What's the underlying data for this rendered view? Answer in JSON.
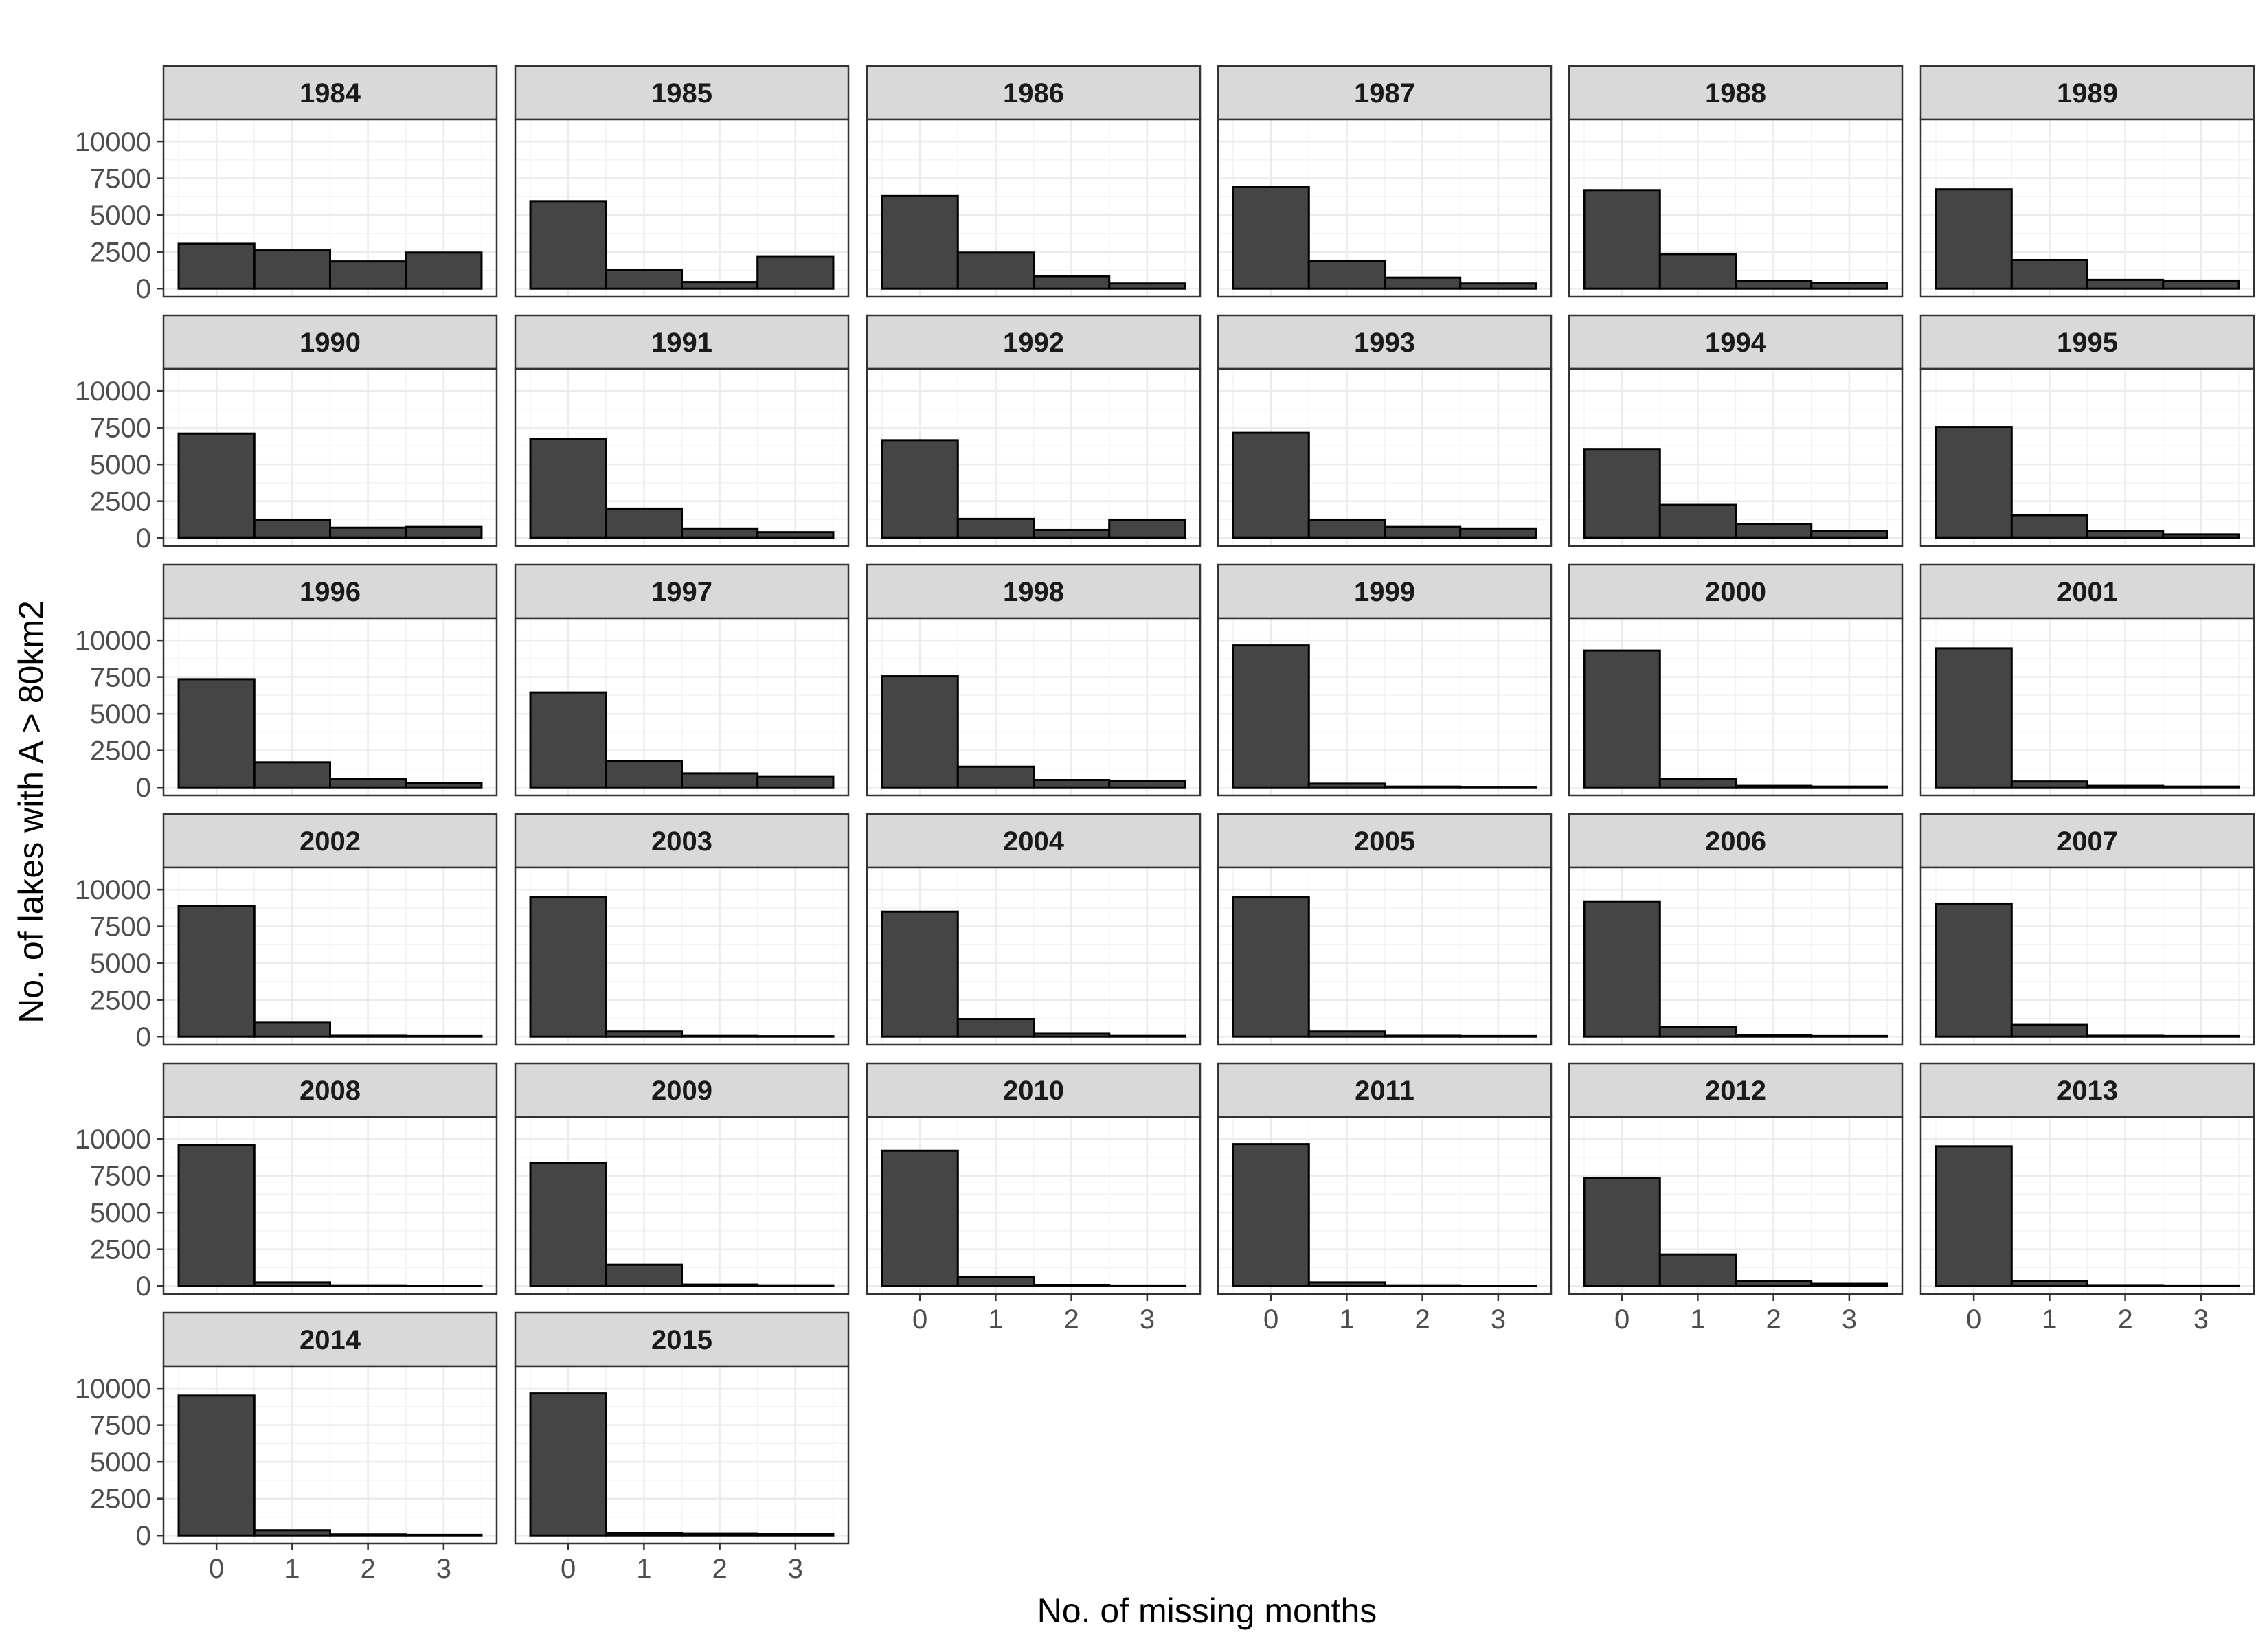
{
  "chart_data": {
    "type": "bar",
    "xlabel": "No. of missing months",
    "ylabel": "No. of lakes with A > 80km2",
    "x_categories": [
      "0",
      "1",
      "2",
      "3"
    ],
    "y_ticks": [
      "0",
      "2500",
      "5000",
      "7500",
      "10000"
    ],
    "y_tick_values": [
      0,
      2500,
      5000,
      7500,
      10000
    ],
    "ylim": [
      -550,
      11500
    ],
    "grid": true,
    "colors": {
      "bar_fill": "#454545",
      "bar_stroke": "#000000",
      "strip_fill": "#d9d9d9",
      "grid": "#ebebeb"
    },
    "facets": [
      {
        "year": "1984",
        "values": [
          3050,
          2600,
          1850,
          2450
        ]
      },
      {
        "year": "1985",
        "values": [
          5950,
          1250,
          450,
          2200
        ]
      },
      {
        "year": "1986",
        "values": [
          6300,
          2450,
          850,
          350
        ]
      },
      {
        "year": "1987",
        "values": [
          6900,
          1900,
          750,
          350
        ]
      },
      {
        "year": "1988",
        "values": [
          6700,
          2350,
          500,
          400
        ]
      },
      {
        "year": "1989",
        "values": [
          6750,
          1950,
          600,
          550
        ]
      },
      {
        "year": "1990",
        "values": [
          7100,
          1250,
          700,
          750
        ]
      },
      {
        "year": "1991",
        "values": [
          6750,
          2000,
          650,
          400
        ]
      },
      {
        "year": "1992",
        "values": [
          6650,
          1300,
          550,
          1250
        ]
      },
      {
        "year": "1993",
        "values": [
          7150,
          1250,
          750,
          650
        ]
      },
      {
        "year": "1994",
        "values": [
          6050,
          2250,
          950,
          500
        ]
      },
      {
        "year": "1995",
        "values": [
          7550,
          1550,
          500,
          250
        ]
      },
      {
        "year": "1996",
        "values": [
          7350,
          1700,
          550,
          300
        ]
      },
      {
        "year": "1997",
        "values": [
          6450,
          1800,
          950,
          750
        ]
      },
      {
        "year": "1998",
        "values": [
          7550,
          1400,
          500,
          450
        ]
      },
      {
        "year": "1999",
        "values": [
          9650,
          250,
          50,
          30
        ]
      },
      {
        "year": "2000",
        "values": [
          9300,
          550,
          100,
          50
        ]
      },
      {
        "year": "2001",
        "values": [
          9450,
          400,
          100,
          50
        ]
      },
      {
        "year": "2002",
        "values": [
          8900,
          950,
          60,
          40
        ]
      },
      {
        "year": "2003",
        "values": [
          9500,
          350,
          50,
          30
        ]
      },
      {
        "year": "2004",
        "values": [
          8500,
          1200,
          200,
          50
        ]
      },
      {
        "year": "2005",
        "values": [
          9500,
          350,
          60,
          40
        ]
      },
      {
        "year": "2006",
        "values": [
          9200,
          650,
          80,
          40
        ]
      },
      {
        "year": "2007",
        "values": [
          9050,
          800,
          60,
          40
        ]
      },
      {
        "year": "2008",
        "values": [
          9600,
          250,
          50,
          30
        ]
      },
      {
        "year": "2009",
        "values": [
          8350,
          1450,
          100,
          50
        ]
      },
      {
        "year": "2010",
        "values": [
          9200,
          600,
          80,
          40
        ]
      },
      {
        "year": "2011",
        "values": [
          9650,
          250,
          50,
          30
        ]
      },
      {
        "year": "2012",
        "values": [
          7350,
          2150,
          350,
          150
        ]
      },
      {
        "year": "2013",
        "values": [
          9500,
          350,
          60,
          40
        ]
      },
      {
        "year": "2014",
        "values": [
          9500,
          350,
          70,
          40
        ]
      },
      {
        "year": "2015",
        "values": [
          9650,
          150,
          100,
          80
        ]
      }
    ]
  }
}
